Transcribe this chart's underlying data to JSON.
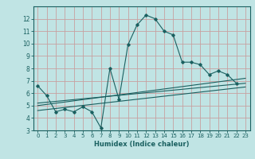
{
  "xlabel": "Humidex (Indice chaleur)",
  "xlim": [
    -0.5,
    23.5
  ],
  "ylim": [
    3,
    13
  ],
  "yticks": [
    3,
    4,
    5,
    6,
    7,
    8,
    9,
    10,
    11,
    12
  ],
  "xticks": [
    0,
    1,
    2,
    3,
    4,
    5,
    6,
    7,
    8,
    9,
    10,
    11,
    12,
    13,
    14,
    15,
    16,
    17,
    18,
    19,
    20,
    21,
    22,
    23
  ],
  "bg_color": "#c0e4e4",
  "grid_color": "#c8a0a0",
  "line_color": "#1a6060",
  "lines": [
    {
      "x": [
        0,
        1,
        2,
        3,
        4,
        5,
        6,
        7,
        8,
        9,
        10,
        11,
        12,
        13,
        14,
        15,
        16,
        17,
        18,
        19,
        20,
        21,
        22
      ],
      "y": [
        6.6,
        5.8,
        4.5,
        4.7,
        4.5,
        4.9,
        4.5,
        3.2,
        8.0,
        5.5,
        9.9,
        11.5,
        12.3,
        12.0,
        11.0,
        10.7,
        8.5,
        8.5,
        8.3,
        7.5,
        7.8,
        7.5,
        6.8
      ],
      "marker": true
    },
    {
      "x": [
        0,
        23
      ],
      "y": [
        5.2,
        6.8
      ],
      "marker": false
    },
    {
      "x": [
        0,
        23
      ],
      "y": [
        5.0,
        7.2
      ],
      "marker": false
    },
    {
      "x": [
        0,
        23
      ],
      "y": [
        4.6,
        6.5
      ],
      "marker": false
    }
  ]
}
